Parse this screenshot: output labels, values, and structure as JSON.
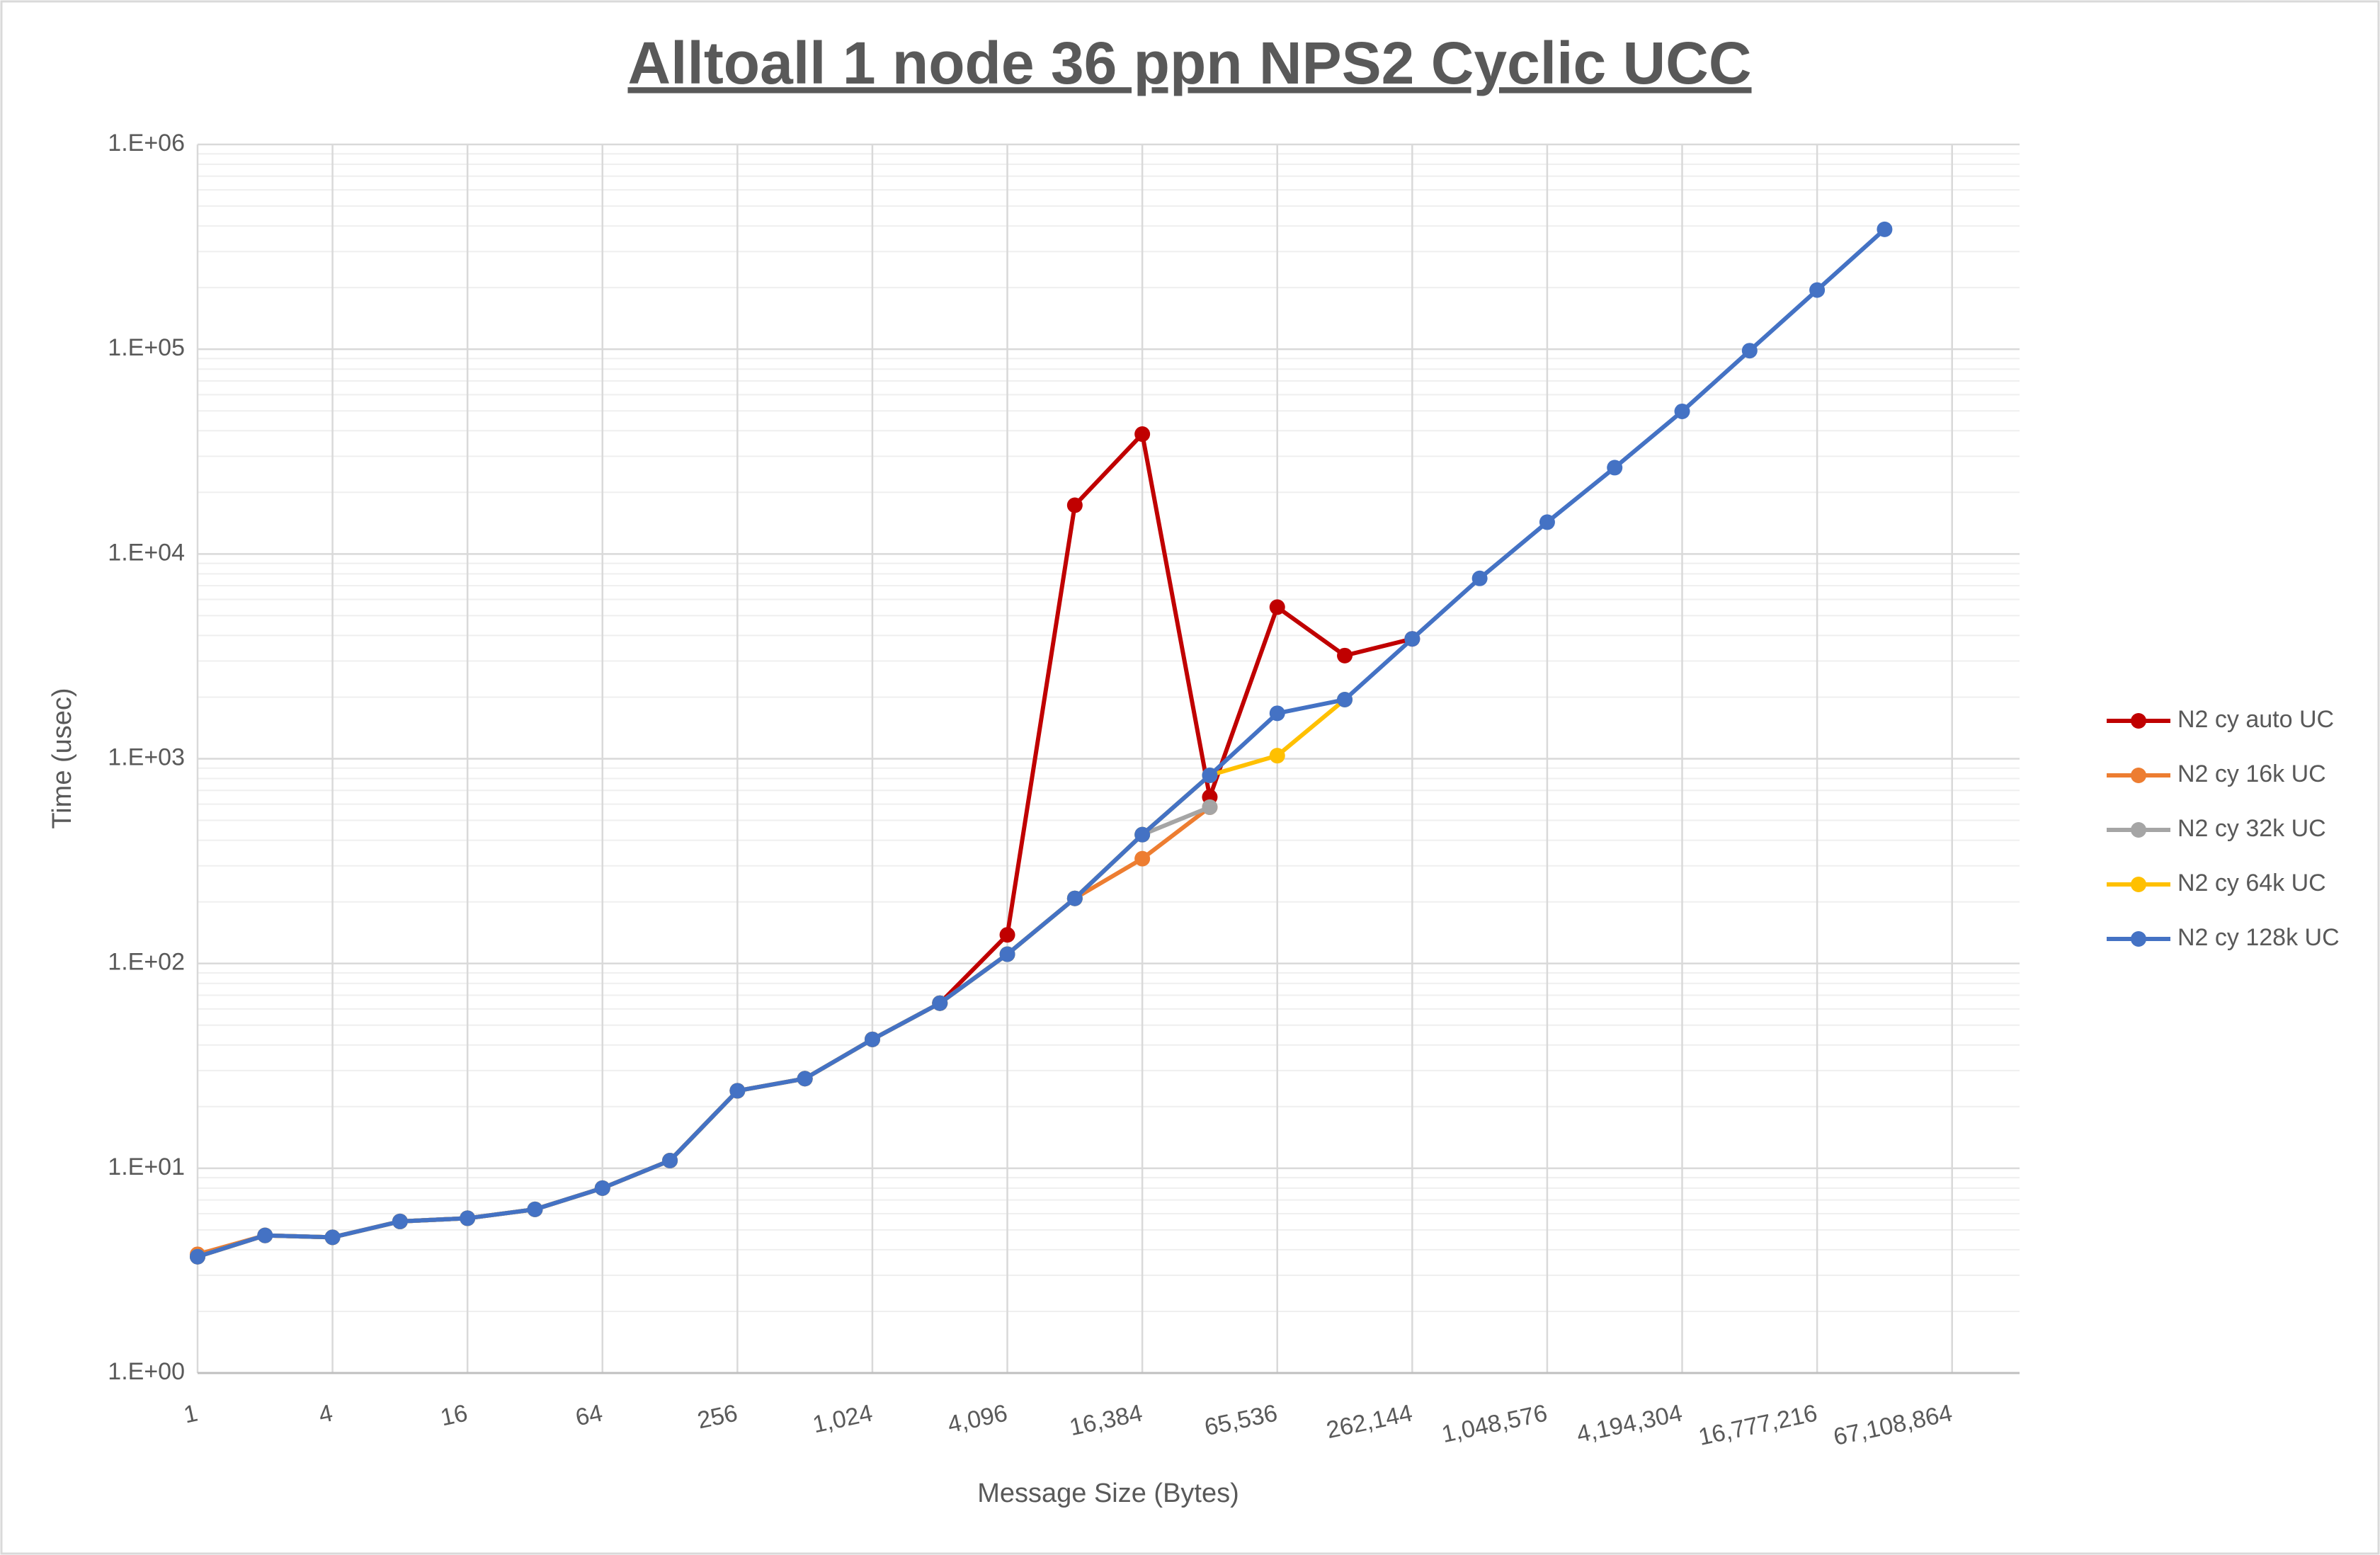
{
  "chart_data": {
    "type": "line",
    "title": "Alltoall 1 node 36 ppn NPS2 Cyclic UCC",
    "x_label": "Message Size (Bytes)",
    "y_label": "Time (usec)",
    "xscale": "log",
    "yscale": "log",
    "grid": true,
    "minor_grid": true,
    "legend": "right",
    "x": [
      1,
      2,
      4,
      8,
      16,
      32,
      64,
      128,
      256,
      512,
      1024,
      2048,
      4096,
      8192,
      16384,
      32768,
      65536,
      131072,
      262144,
      524288,
      1048576,
      2097152,
      4194304,
      8388608,
      16777216,
      33554432
    ],
    "xlim": [
      1,
      134217728
    ],
    "xticks": [
      1,
      4,
      16,
      64,
      256,
      {
        "value": 1024,
        "label": "1,024"
      },
      {
        "value": 4096,
        "label": "4,096"
      },
      {
        "value": 16384,
        "label": "16,384"
      },
      {
        "value": 65536,
        "label": "65,536"
      },
      {
        "value": 262144,
        "label": "262,144"
      },
      {
        "value": 1048576,
        "label": "1,048,576"
      },
      {
        "value": 4194304,
        "label": "4,194,304"
      },
      {
        "value": 16777216,
        "label": "16,777,216"
      },
      {
        "value": 67108864,
        "label": "67,108,864"
      }
    ],
    "ylim": [
      1,
      1000000
    ],
    "yticks": [
      {
        "value": 1,
        "label": "1.E+00"
      },
      {
        "value": 10,
        "label": "1.E+01"
      },
      {
        "value": 100,
        "label": "1.E+02"
      },
      {
        "value": 1000,
        "label": "1.E+03"
      },
      {
        "value": 10000,
        "label": "1.E+04"
      },
      {
        "value": 100000,
        "label": "1.E+05"
      },
      {
        "value": 1000000,
        "label": "1.E+06"
      }
    ],
    "series": [
      {
        "name": "N2 cy auto UC",
        "color": "#c00000",
        "values": [
          3.7,
          4.7,
          4.6,
          5.5,
          5.7,
          6.3,
          8.0,
          10.9,
          23.9,
          27.4,
          42.6,
          64,
          138,
          17300,
          38500,
          650,
          5500,
          3190,
          3850,
          null,
          null,
          null,
          null,
          null,
          null,
          null
        ]
      },
      {
        "name": "N2 cy 16k UC",
        "color": "#ed7d31",
        "values": [
          3.8,
          4.7,
          4.6,
          5.5,
          5.7,
          6.3,
          8.0,
          10.9,
          23.9,
          27.4,
          42.6,
          64,
          111,
          208,
          325,
          580,
          null,
          null,
          null,
          null,
          null,
          null,
          null,
          null,
          null,
          null
        ]
      },
      {
        "name": "N2 cy 32k UC",
        "color": "#a5a5a5",
        "values": [
          3.7,
          4.7,
          4.6,
          5.5,
          5.7,
          6.3,
          8.0,
          10.9,
          23.9,
          27.4,
          42.6,
          64,
          111,
          208,
          426,
          580,
          null,
          null,
          null,
          null,
          null,
          null,
          null,
          null,
          null,
          null
        ]
      },
      {
        "name": "N2 cy 64k UC",
        "color": "#ffc000",
        "values": [
          3.7,
          4.7,
          4.6,
          5.5,
          5.7,
          6.3,
          8.0,
          10.9,
          23.9,
          27.4,
          42.6,
          64,
          111,
          208,
          426,
          830,
          1035,
          1944,
          null,
          null,
          null,
          null,
          null,
          null,
          null,
          null
        ]
      },
      {
        "name": "N2 cy 128k UC",
        "color": "#4472c4",
        "values": [
          3.7,
          4.7,
          4.6,
          5.5,
          5.7,
          6.3,
          8.0,
          10.9,
          23.9,
          27.4,
          42.6,
          64,
          111,
          208,
          426,
          830,
          1667,
          1944,
          3850,
          7600,
          14300,
          26400,
          49700,
          98400,
          194500,
          385000
        ]
      }
    ]
  }
}
